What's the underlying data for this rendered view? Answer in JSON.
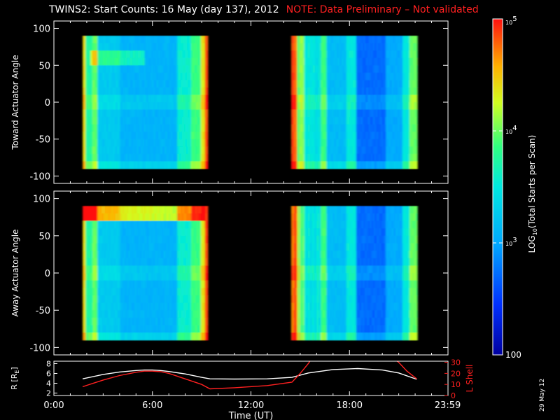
{
  "header": {
    "title": "TWINS2: Start Counts: 16 May (day 137), 2012",
    "note": "NOTE: Data Preliminary – Not validated"
  },
  "footer": {
    "datestamp": "29 May 12"
  },
  "colors": {
    "background": "#000000",
    "axes": "#ffffff",
    "note": "#ff2020",
    "lshell": "#ff2020",
    "r_line": "#ffffff"
  },
  "chart_data": [
    {
      "type": "heatmap",
      "ylabel": "Toward Actuator Angle",
      "ylim": [
        -110,
        110
      ],
      "yticks": [
        100,
        50,
        0,
        -50,
        -100
      ],
      "xlim": [
        0,
        24
      ],
      "data_intervals_ut": [
        [
          1.75,
          9.35
        ],
        [
          14.45,
          22.1
        ]
      ],
      "colormap": "rainbow",
      "notes_visible": "bright band near +60 deg in early interval; red edges near 9.2 and 14.5 UT"
    },
    {
      "type": "heatmap",
      "ylabel": "Away Actuator Angle",
      "ylim": [
        -110,
        110
      ],
      "yticks": [
        100,
        50,
        0,
        -50,
        -100
      ],
      "xlim": [
        0,
        24
      ],
      "data_intervals_ut": [
        [
          1.75,
          9.35
        ],
        [
          14.45,
          22.1
        ]
      ],
      "colormap": "rainbow",
      "notes_visible": "orange/red band near +80 deg in early interval"
    },
    {
      "type": "line",
      "xlabel": "Time (UT)",
      "xlim": [
        0,
        24
      ],
      "xticks": [
        "0:00",
        "6:00",
        "12:00",
        "18:00",
        "23:59"
      ],
      "left_axis": {
        "ylabel": "R [R",
        "ylabel_sub": "E",
        "ylabel_end": "]",
        "ylim": [
          1.5,
          8.5
        ],
        "yticks": [
          2,
          4,
          6,
          8
        ]
      },
      "right_axis": {
        "ylabel": "L Shell",
        "ylim": [
          0,
          31
        ],
        "yticks": [
          0,
          10,
          20,
          30
        ]
      },
      "series": [
        {
          "axis": "left",
          "color": "#ffffff",
          "x": [
            1.75,
            3,
            4,
            5,
            5.5,
            6,
            6.5,
            7,
            8,
            9,
            9.5,
            11,
            13,
            14.5,
            15.5,
            17,
            18.5,
            20,
            21,
            22.1
          ],
          "values": [
            4.9,
            5.8,
            6.3,
            6.6,
            6.7,
            6.7,
            6.6,
            6.4,
            5.9,
            5.2,
            4.9,
            4.85,
            4.9,
            5.2,
            6.1,
            6.8,
            7.0,
            6.7,
            6.1,
            4.8
          ]
        },
        {
          "axis": "right",
          "color": "#ff2020",
          "x": [
            1.75,
            3,
            4,
            5,
            5.5,
            6,
            6.5,
            7,
            8,
            9,
            9.5,
            11,
            13,
            14.5,
            15,
            15.5,
            16,
            20,
            21,
            21.5,
            22.1
          ],
          "values": [
            8,
            14,
            18,
            21,
            22,
            22,
            21.5,
            20,
            15,
            10,
            6,
            7,
            9,
            12,
            20,
            29,
            40,
            40,
            30,
            22,
            15
          ]
        }
      ]
    },
    {
      "type": "colorbar",
      "orientation": "vertical",
      "scale": "log",
      "label": "LOG",
      "label_sub": "10",
      "label_end": "(Total Starts per Scan)",
      "range": [
        100,
        100000
      ],
      "ticks": [
        {
          "value": 100000,
          "base": "10",
          "exp": "5"
        },
        {
          "value": 10000,
          "base": "10",
          "exp": "4"
        },
        {
          "value": 1000,
          "base": "10",
          "exp": "3"
        },
        {
          "value": 100,
          "label": "100"
        }
      ]
    }
  ]
}
